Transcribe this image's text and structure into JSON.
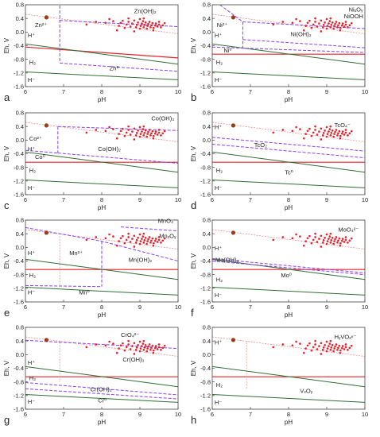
{
  "figure": {
    "styles": {
      "red": "#e8202a",
      "pink": "#f08a8a",
      "purple": "#8a3ff0",
      "green": "#2e6e35",
      "dot": "#e8202a",
      "big_dot": "#9a3a16"
    }
  },
  "chart_data": [
    {
      "type": "line",
      "panel": "a",
      "xlabel": "pH",
      "ylabel": "Eh, V",
      "xlim": [
        6,
        10
      ],
      "ylim": [
        -1.6,
        0.8
      ],
      "xticks": [
        "6",
        "7",
        "8",
        "9",
        "10"
      ],
      "yticks": [
        "-1.6",
        "-1.2",
        "-0.8",
        "-0.4",
        "0.0",
        "0.4",
        "0.8"
      ],
      "lines": [
        {
          "style": "red",
          "x": [
            6,
            10
          ],
          "y": [
            -0.44,
            -0.76
          ]
        },
        {
          "style": "pink",
          "x": [
            6,
            10
          ],
          "y": [
            0.52,
            -0.05
          ]
        },
        {
          "style": "green",
          "x": [
            6,
            10
          ],
          "y": [
            -0.35,
            -0.94
          ]
        },
        {
          "style": "green",
          "x": [
            6,
            10
          ],
          "y": [
            -1.17,
            -1.4
          ]
        },
        {
          "style": "purple",
          "x": [
            6.9,
            10
          ],
          "y": [
            0.34,
            0.16
          ]
        },
        {
          "style": "purple",
          "x": [
            6.9,
            6.9
          ],
          "y": [
            0.78,
            -0.9
          ]
        },
        {
          "style": "purple",
          "x": [
            6.9,
            10
          ],
          "y": [
            -0.91,
            -1.15
          ]
        }
      ],
      "labels": [
        {
          "text": "Zn(OH)₂",
          "x": 8.85,
          "y": 0.55
        },
        {
          "text": "Zn²⁺",
          "x": 6.25,
          "y": 0.15
        },
        {
          "text": "H⁺",
          "x": 6.06,
          "y": -0.15
        },
        {
          "text": "H₂",
          "x": 6.1,
          "y": -0.95
        },
        {
          "text": "Zn⁰",
          "x": 8.2,
          "y": -1.12
        },
        {
          "text": "H⁻",
          "x": 6.06,
          "y": -1.46
        }
      ]
    },
    {
      "type": "line",
      "panel": "b",
      "xlabel": "pH",
      "ylabel": "Eh, V",
      "xlim": [
        6,
        10
      ],
      "ylim": [
        -1.6,
        0.8
      ],
      "xticks": [
        "6",
        "7",
        "8",
        "9",
        "10"
      ],
      "yticks": [
        "-1.6",
        "-1.2",
        "-0.8",
        "-0.4",
        "0.0",
        "0.4",
        "0.8"
      ],
      "lines": [
        {
          "style": "red",
          "x": [
            6,
            10
          ],
          "y": [
            -0.65,
            -0.65
          ]
        },
        {
          "style": "pink",
          "x": [
            6,
            10
          ],
          "y": [
            0.52,
            -0.05
          ]
        },
        {
          "style": "green",
          "x": [
            6,
            10
          ],
          "y": [
            -0.35,
            -0.94
          ]
        },
        {
          "style": "green",
          "x": [
            6,
            10
          ],
          "y": [
            -1.17,
            -1.4
          ]
        },
        {
          "style": "purple",
          "x": [
            6.2,
            6.8
          ],
          "y": [
            0.8,
            0.3
          ]
        },
        {
          "style": "purple",
          "x": [
            6.8,
            10
          ],
          "y": [
            0.3,
            0.1
          ]
        },
        {
          "style": "purple",
          "x": [
            6.8,
            6.8
          ],
          "y": [
            0.3,
            -0.48
          ]
        },
        {
          "style": "purple",
          "x": [
            6,
            10
          ],
          "y": [
            -0.44,
            -0.6
          ]
        },
        {
          "style": "purple",
          "x": [
            6.8,
            10
          ],
          "y": [
            -0.22,
            -0.46
          ]
        }
      ],
      "labels": [
        {
          "text": "NiₓOᵧ",
          "x": 9.85,
          "y": 0.6
        },
        {
          "text": "NiOOH",
          "x": 9.8,
          "y": 0.4
        },
        {
          "text": "Ni²⁺",
          "x": 6.12,
          "y": 0.15
        },
        {
          "text": "H⁺",
          "x": 6.06,
          "y": -0.15
        },
        {
          "text": "Ni(OH)₂",
          "x": 8.05,
          "y": -0.12
        },
        {
          "text": "Ni⁰",
          "x": 6.3,
          "y": -0.6
        },
        {
          "text": "H₂",
          "x": 6.1,
          "y": -0.95
        },
        {
          "text": "H⁻",
          "x": 6.06,
          "y": -1.46
        }
      ]
    },
    {
      "type": "line",
      "panel": "c",
      "xlabel": "pH",
      "ylabel": "Eh, V",
      "xlim": [
        6,
        10
      ],
      "ylim": [
        -1.6,
        0.8
      ],
      "xticks": [
        "6",
        "7",
        "8",
        "9",
        "10"
      ],
      "yticks": [
        "-1.6",
        "-1.2",
        "-0.8",
        "-0.4",
        "0.0",
        "0.4",
        "0.8"
      ],
      "lines": [
        {
          "style": "red",
          "x": [
            6,
            10
          ],
          "y": [
            -0.65,
            -0.65
          ]
        },
        {
          "style": "pink",
          "x": [
            6,
            10
          ],
          "y": [
            0.52,
            -0.05
          ]
        },
        {
          "style": "green",
          "x": [
            6,
            10
          ],
          "y": [
            -0.35,
            -0.94
          ]
        },
        {
          "style": "green",
          "x": [
            6,
            10
          ],
          "y": [
            -1.17,
            -1.4
          ]
        },
        {
          "style": "purple",
          "x": [
            6.85,
            10
          ],
          "y": [
            0.4,
            0.28
          ]
        },
        {
          "style": "purple",
          "x": [
            6.85,
            6.85
          ],
          "y": [
            0.4,
            -0.38
          ]
        },
        {
          "style": "purple",
          "x": [
            6,
            6.85
          ],
          "y": [
            -0.3,
            -0.38
          ]
        },
        {
          "style": "purple",
          "x": [
            6.85,
            10
          ],
          "y": [
            -0.38,
            -0.68
          ]
        }
      ],
      "labels": [
        {
          "text": "Co(OH)₃",
          "x": 9.3,
          "y": 0.58
        },
        {
          "text": "Co²⁺",
          "x": 6.1,
          "y": -0.02
        },
        {
          "text": "H⁺",
          "x": 6.06,
          "y": -0.32
        },
        {
          "text": "Co(OH)₂",
          "x": 7.9,
          "y": -0.32
        },
        {
          "text": "Co⁰",
          "x": 6.25,
          "y": -0.55
        },
        {
          "text": "H₂",
          "x": 6.1,
          "y": -0.95
        },
        {
          "text": "H⁻",
          "x": 6.06,
          "y": -1.46
        }
      ]
    },
    {
      "type": "line",
      "panel": "d",
      "xlabel": "pH",
      "ylabel": "Eh, V",
      "xlim": [
        6,
        10
      ],
      "ylim": [
        -1.6,
        0.8
      ],
      "xticks": [
        "6",
        "7",
        "8",
        "9",
        "10"
      ],
      "yticks": [
        "-1.6",
        "-1.2",
        "-0.8",
        "-0.4",
        "0.0",
        "0.4",
        "0.8"
      ],
      "lines": [
        {
          "style": "red",
          "x": [
            6,
            10
          ],
          "y": [
            -0.65,
            -0.65
          ]
        },
        {
          "style": "pink",
          "x": [
            6,
            10
          ],
          "y": [
            0.52,
            -0.05
          ]
        },
        {
          "style": "green",
          "x": [
            6,
            10
          ],
          "y": [
            -0.35,
            -0.94
          ]
        },
        {
          "style": "green",
          "x": [
            6,
            10
          ],
          "y": [
            -1.17,
            -1.4
          ]
        },
        {
          "style": "purple",
          "x": [
            6,
            10
          ],
          "y": [
            0.08,
            -0.32
          ]
        },
        {
          "style": "purple",
          "x": [
            6,
            10
          ],
          "y": [
            -0.12,
            -0.52
          ]
        }
      ],
      "labels": [
        {
          "text": "TcO₄⁻",
          "x": 9.2,
          "y": 0.38
        },
        {
          "text": "H⁺",
          "x": 6.06,
          "y": 0.32
        },
        {
          "text": "TcO₂",
          "x": 7.1,
          "y": -0.2
        },
        {
          "text": "H₂",
          "x": 6.1,
          "y": -0.95
        },
        {
          "text": "Tc⁰",
          "x": 7.9,
          "y": -1.0
        },
        {
          "text": "H⁻",
          "x": 6.06,
          "y": -1.46
        }
      ]
    },
    {
      "type": "line",
      "panel": "e",
      "xlabel": "pH",
      "ylabel": "Eh, V",
      "xlim": [
        6,
        10
      ],
      "ylim": [
        -1.6,
        0.8
      ],
      "xticks": [
        "6",
        "7",
        "8",
        "9",
        "10"
      ],
      "yticks": [
        "-1.6",
        "-1.2",
        "-0.8",
        "-0.4",
        "0.0",
        "0.4",
        "0.8"
      ],
      "lines": [
        {
          "style": "red",
          "x": [
            6,
            10
          ],
          "y": [
            -0.65,
            -0.65
          ]
        },
        {
          "style": "pink",
          "x": [
            6,
            10
          ],
          "y": [
            0.52,
            -0.05
          ]
        },
        {
          "style": "pink",
          "x": [
            6.9,
            6.9
          ],
          "y": [
            0.33,
            -1.1
          ]
        },
        {
          "style": "green",
          "x": [
            6,
            10
          ],
          "y": [
            -0.35,
            -0.94
          ]
        },
        {
          "style": "green",
          "x": [
            6,
            10
          ],
          "y": [
            -1.17,
            -1.4
          ]
        },
        {
          "style": "purple",
          "x": [
            6,
            8.0,
            10
          ],
          "y": [
            0.58,
            0.18,
            -0.4
          ]
        },
        {
          "style": "purple",
          "x": [
            8.0,
            8.0
          ],
          "y": [
            0.18,
            -1.15
          ]
        },
        {
          "style": "purple",
          "x": [
            6,
            8.0
          ],
          "y": [
            -1.12,
            -1.15
          ]
        },
        {
          "style": "purple",
          "x": [
            8.5,
            10
          ],
          "y": [
            0.6,
            0.48
          ]
        }
      ],
      "labels": [
        {
          "text": "MnO₄⁻",
          "x": 9.7,
          "y": 0.72
        },
        {
          "text": "MnₓOᵧ",
          "x": 9.7,
          "y": 0.28
        },
        {
          "text": "H⁺",
          "x": 6.06,
          "y": -0.22
        },
        {
          "text": "Mn²⁺",
          "x": 7.15,
          "y": -0.22
        },
        {
          "text": "Mn(OH)₂",
          "x": 8.7,
          "y": -0.42
        },
        {
          "text": "H₂",
          "x": 6.1,
          "y": -0.88
        },
        {
          "text": "H⁻",
          "x": 6.06,
          "y": -1.38
        },
        {
          "text": "Mn⁰",
          "x": 7.4,
          "y": -1.38
        }
      ]
    },
    {
      "type": "line",
      "panel": "f",
      "xlabel": "pH",
      "ylabel": "Eh, V",
      "xlim": [
        6,
        10
      ],
      "ylim": [
        -1.6,
        0.8
      ],
      "xticks": [
        "6",
        "7",
        "8",
        "9",
        "10"
      ],
      "yticks": [
        "-1.6",
        "-1.2",
        "-0.8",
        "-0.4",
        "0.0",
        "0.4",
        "0.8"
      ],
      "lines": [
        {
          "style": "red",
          "x": [
            6,
            10
          ],
          "y": [
            -0.65,
            -0.65
          ]
        },
        {
          "style": "pink",
          "x": [
            6,
            10
          ],
          "y": [
            0.52,
            -0.05
          ]
        },
        {
          "style": "green",
          "x": [
            6,
            10
          ],
          "y": [
            -0.35,
            -0.94
          ]
        },
        {
          "style": "green",
          "x": [
            6,
            10
          ],
          "y": [
            -1.17,
            -1.4
          ]
        },
        {
          "style": "purple",
          "x": [
            6,
            10
          ],
          "y": [
            -0.33,
            -0.75
          ]
        },
        {
          "style": "purple",
          "x": [
            6,
            10
          ],
          "y": [
            -0.4,
            -0.8
          ]
        }
      ],
      "labels": [
        {
          "text": "MoO₄²⁻",
          "x": 9.3,
          "y": 0.46
        },
        {
          "text": "H⁺",
          "x": 6.06,
          "y": -0.08
        },
        {
          "text": "Mo(OH)₃",
          "x": 6.08,
          "y": -0.42
        },
        {
          "text": "Mo⁰",
          "x": 7.8,
          "y": -0.88
        },
        {
          "text": "H₂",
          "x": 6.1,
          "y": -1.0
        },
        {
          "text": "H⁻",
          "x": 6.06,
          "y": -1.46
        }
      ]
    },
    {
      "type": "line",
      "panel": "g",
      "xlabel": "pH",
      "ylabel": "Eh, V",
      "xlim": [
        6,
        10
      ],
      "ylim": [
        -1.6,
        0.8
      ],
      "xticks": [
        "6",
        "7",
        "8",
        "9",
        "10"
      ],
      "yticks": [
        "-1.6",
        "-1.2",
        "-0.8",
        "-0.4",
        "0.0",
        "0.4",
        "0.8"
      ],
      "lines": [
        {
          "style": "red",
          "x": [
            6,
            10
          ],
          "y": [
            -0.65,
            -0.65
          ]
        },
        {
          "style": "pink",
          "x": [
            6,
            10
          ],
          "y": [
            0.52,
            -0.05
          ]
        },
        {
          "style": "pink",
          "x": [
            6.9,
            6.9
          ],
          "y": [
            0.36,
            -0.8
          ]
        },
        {
          "style": "green",
          "x": [
            6,
            10
          ],
          "y": [
            -0.35,
            -0.94
          ]
        },
        {
          "style": "green",
          "x": [
            6,
            10
          ],
          "y": [
            -1.17,
            -1.4
          ]
        },
        {
          "style": "purple",
          "x": [
            6,
            10
          ],
          "y": [
            0.42,
            0.18
          ]
        },
        {
          "style": "purple",
          "x": [
            6,
            10
          ],
          "y": [
            -0.82,
            -1.18
          ]
        },
        {
          "style": "purple",
          "x": [
            6,
            10
          ],
          "y": [
            -1.0,
            -1.3
          ]
        }
      ],
      "labels": [
        {
          "text": "CrO₄²⁻",
          "x": 8.5,
          "y": 0.52
        },
        {
          "text": "H⁺",
          "x": 6.06,
          "y": -0.3
        },
        {
          "text": "Cr(OH)₃",
          "x": 8.55,
          "y": -0.2
        },
        {
          "text": "H₂",
          "x": 6.1,
          "y": -0.75
        },
        {
          "text": "Cr(OH)₂",
          "x": 7.7,
          "y": -1.08
        },
        {
          "text": "H⁻",
          "x": 6.06,
          "y": -1.44
        },
        {
          "text": "Cr⁰",
          "x": 7.9,
          "y": -1.4
        }
      ]
    },
    {
      "type": "line",
      "panel": "h",
      "xlabel": "pH",
      "ylabel": "Eh, V",
      "xlim": [
        6,
        10
      ],
      "ylim": [
        -1.6,
        0.8
      ],
      "xticks": [
        "6",
        "7",
        "8",
        "9",
        "10"
      ],
      "yticks": [
        "-1.6",
        "-1.2",
        "-0.8",
        "-0.4",
        "0.0",
        "0.4",
        "0.8"
      ],
      "lines": [
        {
          "style": "red",
          "x": [
            6,
            10
          ],
          "y": [
            -0.65,
            -0.65
          ]
        },
        {
          "style": "pink",
          "x": [
            6,
            10
          ],
          "y": [
            0.52,
            -0.05
          ]
        },
        {
          "style": "pink",
          "x": [
            6.9,
            6.9
          ],
          "y": [
            0.36,
            -1.0
          ]
        },
        {
          "style": "green",
          "x": [
            6,
            10
          ],
          "y": [
            -0.35,
            -0.94
          ]
        },
        {
          "style": "green",
          "x": [
            6,
            10
          ],
          "y": [
            -1.17,
            -1.4
          ]
        }
      ],
      "labels": [
        {
          "text": "HᵧVOₓⁿ⁻",
          "x": 9.2,
          "y": 0.46
        },
        {
          "text": "H⁺",
          "x": 6.06,
          "y": 0.3
        },
        {
          "text": "H₂",
          "x": 6.1,
          "y": -0.95
        },
        {
          "text": "VₓOᵧ",
          "x": 8.3,
          "y": -1.12
        },
        {
          "text": "H⁻",
          "x": 6.06,
          "y": -1.46
        }
      ]
    }
  ]
}
